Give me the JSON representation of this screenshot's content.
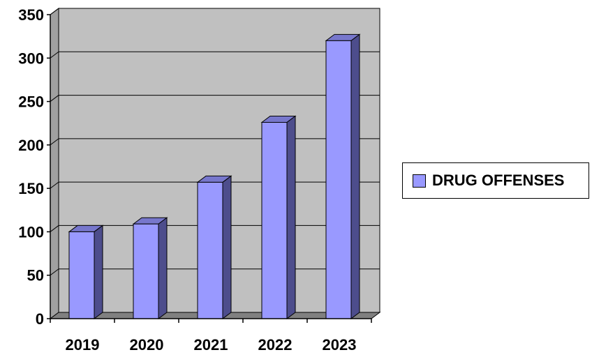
{
  "chart_data": {
    "type": "bar",
    "categories": [
      "2019",
      "2020",
      "2021",
      "2022",
      "2023"
    ],
    "series": [
      {
        "name": "DRUG OFFENSES",
        "values": [
          100,
          109,
          157,
          226,
          320
        ]
      }
    ],
    "ylim": [
      0,
      350
    ],
    "yticks": [
      "0",
      "50",
      "100",
      "150",
      "200",
      "250",
      "300",
      "350"
    ],
    "grid": true,
    "legend_position": "right",
    "colors": {
      "bar_front": "#9999ff",
      "bar_side": "#4d4d8c",
      "bar_top": "#7777cc",
      "plot_background": "#c0c0c0",
      "floor": "#808080"
    }
  }
}
